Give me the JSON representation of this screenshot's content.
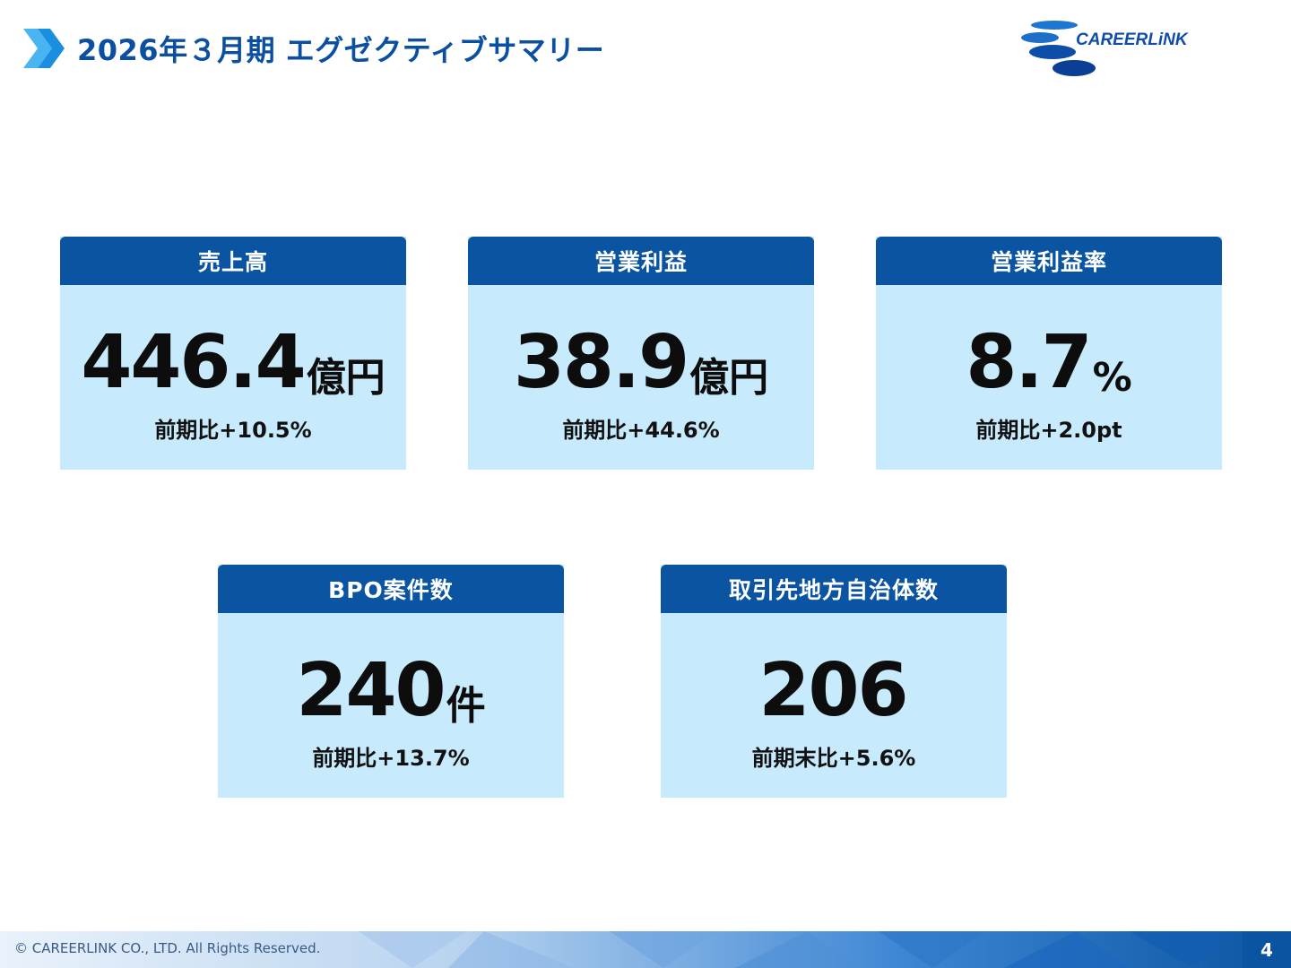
{
  "header": {
    "title": "2026年３月期 エグゼクティブサマリー"
  },
  "logo": {
    "text": "CAREERLiNK"
  },
  "colors": {
    "primary": "#0b54a2",
    "card_bg": "#c7eafc",
    "title_blue": "#0a4fa1",
    "chevron_blue": "#1f9be6"
  },
  "kpis": [
    {
      "label": "売上高",
      "value": "446.4",
      "unit": "億円",
      "change": "前期比+10.5%"
    },
    {
      "label": "営業利益",
      "value": "38.9",
      "unit": "億円",
      "change": "前期比+44.6%"
    },
    {
      "label": "営業利益率",
      "value": "8.7",
      "unit": "%",
      "change": "前期比+2.0pt"
    },
    {
      "label": "BPO案件数",
      "value": "240",
      "unit": "件",
      "change": "前期比+13.7%"
    },
    {
      "label": "取引先地方自治体数",
      "value": "206",
      "unit": "",
      "change": "前期末比+5.6%"
    }
  ],
  "footer": {
    "copyright": "© CAREERLINK CO., LTD. All Rights Reserved.",
    "page_number": "4"
  }
}
